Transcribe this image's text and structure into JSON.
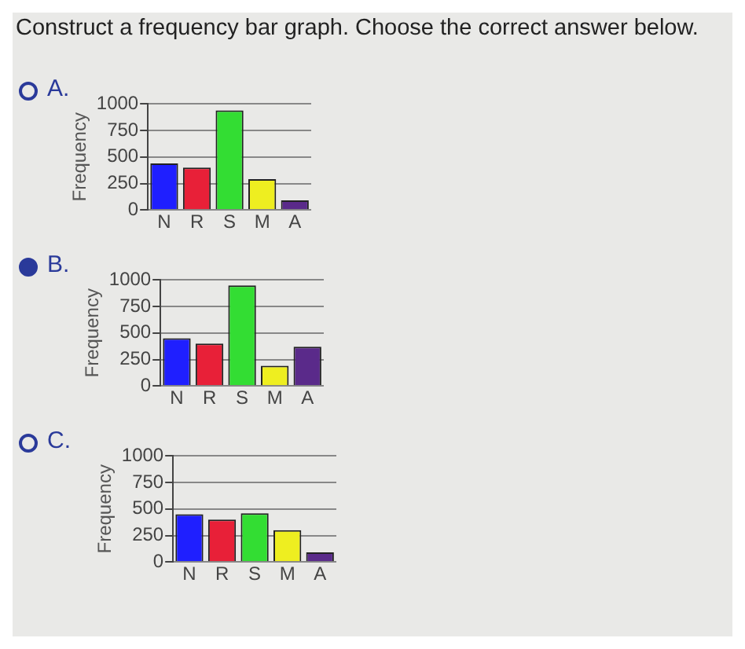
{
  "chart_data": [
    {
      "type": "bar",
      "title": "Construct a frequency bar graph. Choose the correct answer below.",
      "annotations": [
        "A."
      ],
      "ylabel": "Frequency",
      "categories": [
        "N",
        "R",
        "S",
        "M",
        "A"
      ],
      "values": [
        440,
        400,
        940,
        290,
        90
      ],
      "colors": [
        "#1f1fff",
        "#e82038",
        "#33dd33",
        "#eeee20",
        "#5a2a8a"
      ],
      "ylim": [
        0,
        1000
      ],
      "yticks": [
        0,
        250,
        500,
        750,
        1000
      ],
      "grid": "y"
    },
    {
      "type": "bar",
      "annotations": [
        "B."
      ],
      "ylabel": "Frequency",
      "categories": [
        "N",
        "R",
        "S",
        "M",
        "A"
      ],
      "values": [
        450,
        400,
        950,
        190,
        370
      ],
      "colors": [
        "#1f1fff",
        "#e82038",
        "#33dd33",
        "#eeee20",
        "#5a2a8a"
      ],
      "ylim": [
        0,
        1000
      ],
      "yticks": [
        0,
        250,
        500,
        750,
        1000
      ],
      "grid": "y"
    },
    {
      "type": "bar",
      "annotations": [
        "C."
      ],
      "ylabel": "Frequency",
      "categories": [
        "N",
        "R",
        "S",
        "M",
        "A"
      ],
      "values": [
        450,
        400,
        460,
        300,
        90
      ],
      "colors": [
        "#1f1fff",
        "#e82038",
        "#33dd33",
        "#eeee20",
        "#5a2a8a"
      ],
      "ylim": [
        0,
        1000
      ],
      "yticks": [
        0,
        250,
        500,
        750,
        1000
      ],
      "grid": "y"
    }
  ]
}
